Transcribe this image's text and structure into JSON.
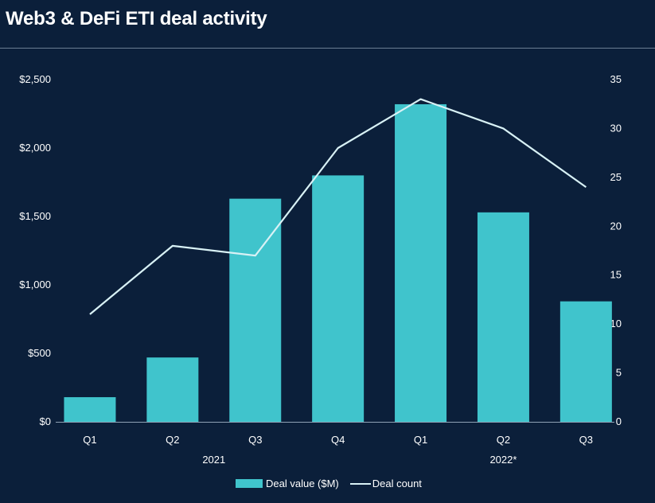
{
  "title": "Web3 & DeFi ETI deal activity",
  "colors": {
    "background": "#0b1f3a",
    "bar": "#40c4cc",
    "line": "#d8f1f5",
    "text": "#ffffff"
  },
  "chart_data": {
    "type": "bar",
    "categories": [
      "Q1",
      "Q2",
      "Q3",
      "Q4",
      "Q1",
      "Q2",
      "Q3"
    ],
    "groups": [
      {
        "label": "2021",
        "from": 0,
        "to": 3
      },
      {
        "label": "2022*",
        "from": 4,
        "to": 6
      }
    ],
    "series": [
      {
        "name": "Deal value ($M)",
        "type": "bar",
        "axis": "left",
        "values": [
          180,
          470,
          1630,
          1800,
          2320,
          1530,
          880
        ]
      },
      {
        "name": "Deal count",
        "type": "line",
        "axis": "right",
        "values": [
          11,
          18,
          17,
          28,
          33,
          30,
          24
        ]
      }
    ],
    "y_left": {
      "ylim": [
        0,
        2500
      ],
      "ticks": [
        0,
        500,
        1000,
        1500,
        2000,
        2500
      ],
      "tick_labels": [
        "$0",
        "$500",
        "$1,000",
        "$1,500",
        "$2,000",
        "$2,500"
      ]
    },
    "y_right": {
      "ylim": [
        0,
        35
      ],
      "ticks": [
        0,
        5,
        10,
        15,
        20,
        25,
        30,
        35
      ],
      "tick_labels": [
        "0",
        "5",
        "10",
        "15",
        "20",
        "25",
        "30",
        "35"
      ]
    },
    "grid": false,
    "legend_position": "bottom-center"
  }
}
